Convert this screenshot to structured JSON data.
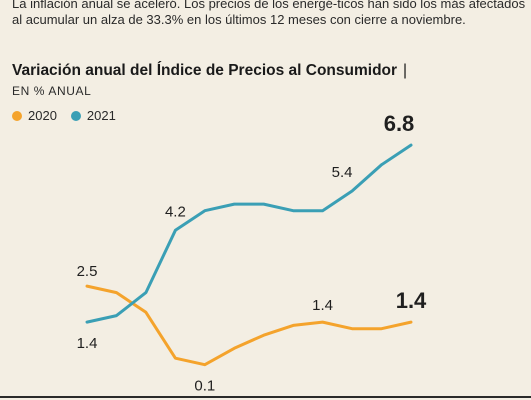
{
  "intro_text": "La inflación anual se aceleró. Los precios de los energé-ticos han sido los más afectados al acumular un alza de 33.3% en los últimos 12 meses con cierre a noviembre.",
  "chart_data": {
    "type": "line",
    "title": "Variación anual del Índice de Precios al Consumidor",
    "title_separator": "|",
    "subtitle": "EN % ANUAL",
    "ylim": [
      0,
      7.2
    ],
    "grid": false,
    "legend_position": "top-left",
    "series": [
      {
        "name": "2020",
        "color": "#f4a32c",
        "values": [
          2.5,
          2.3,
          1.7,
          0.3,
          0.1,
          0.6,
          1.0,
          1.3,
          1.4,
          1.2,
          1.2,
          1.4
        ]
      },
      {
        "name": "2021",
        "color": "#3a9fb5",
        "values": [
          1.4,
          1.6,
          2.3,
          4.2,
          4.8,
          5.0,
          5.0,
          4.8,
          4.8,
          5.4,
          6.2,
          6.8
        ]
      }
    ],
    "data_labels": [
      {
        "series": 0,
        "index": 0,
        "text": "2.5",
        "bold": false
      },
      {
        "series": 0,
        "index": 4,
        "text": "0.1",
        "bold": false
      },
      {
        "series": 0,
        "index": 8,
        "text": "1.4",
        "bold": false
      },
      {
        "series": 0,
        "index": 11,
        "text": "1.4",
        "bold": true
      },
      {
        "series": 1,
        "index": 0,
        "text": "1.4",
        "bold": false
      },
      {
        "series": 1,
        "index": 3,
        "text": "4.2",
        "bold": false
      },
      {
        "series": 1,
        "index": 9,
        "text": "5.4",
        "bold": false
      },
      {
        "series": 1,
        "index": 11,
        "text": "6.8",
        "bold": true
      }
    ]
  }
}
